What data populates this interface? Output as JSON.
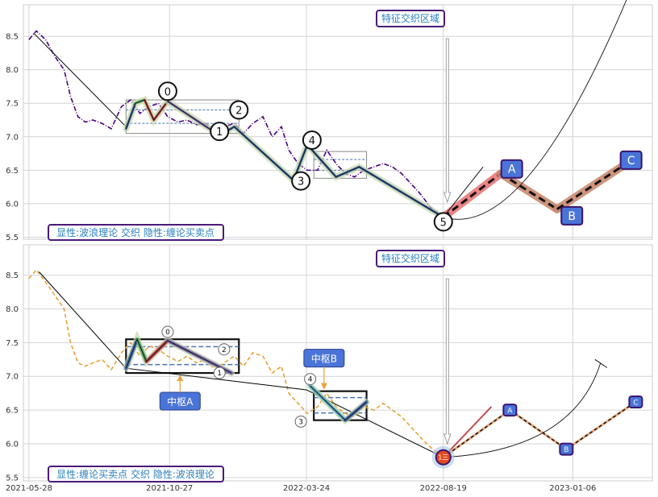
{
  "chart_data": [
    {
      "type": "line",
      "panel": "top",
      "title": "",
      "xlabel": "",
      "ylabel": "",
      "xlim": [
        "2021-05-22",
        "2023-04-02"
      ],
      "ylim": [
        5.47,
        8.97
      ],
      "yticks": [
        5.5,
        6.0,
        6.5,
        7.0,
        7.5,
        8.0,
        8.5
      ],
      "grid": true,
      "series": [
        {
          "name": "",
          "style": "dash-dot",
          "color": "#4b0082",
          "x": [
            "2021-05-28",
            "2021-06-05",
            "2021-06-15",
            "2021-06-25",
            "2021-07-05",
            "2021-07-12",
            "2021-07-20",
            "2021-07-28",
            "2021-08-05",
            "2021-08-15",
            "2021-08-25",
            "2021-09-05",
            "2021-09-15",
            "2021-09-25",
            "2021-10-05",
            "2021-10-15",
            "2021-10-25",
            "2021-11-05",
            "2021-11-15",
            "2021-11-25",
            "2021-12-05",
            "2021-12-15",
            "2021-12-25",
            "2022-01-05",
            "2022-01-15",
            "2022-01-25",
            "2022-02-05",
            "2022-02-15",
            "2022-02-25",
            "2022-03-05",
            "2022-03-15",
            "2022-03-25",
            "2022-04-05",
            "2022-04-15",
            "2022-04-25",
            "2022-05-05",
            "2022-05-15",
            "2022-05-25",
            "2022-06-05",
            "2022-06-15",
            "2022-06-25",
            "2022-07-05",
            "2022-07-15",
            "2022-07-25",
            "2022-08-05",
            "2022-08-19"
          ],
          "y": [
            8.45,
            8.58,
            8.45,
            8.2,
            8.0,
            7.6,
            7.3,
            7.22,
            7.25,
            7.2,
            7.12,
            7.45,
            7.55,
            7.35,
            7.45,
            7.5,
            7.3,
            7.22,
            7.25,
            7.18,
            7.2,
            7.1,
            7.15,
            7.2,
            7.05,
            7.2,
            7.3,
            7.0,
            7.15,
            6.8,
            6.6,
            6.5,
            6.5,
            6.8,
            6.6,
            6.45,
            6.4,
            6.5,
            6.55,
            6.6,
            6.55,
            6.45,
            6.3,
            6.15,
            5.95,
            5.8
          ]
        },
        {
          "name": "",
          "style": "solid",
          "color": "#000000",
          "x": [
            "2021-06-02",
            "2021-09-10"
          ],
          "y": [
            8.55,
            7.15
          ]
        }
      ],
      "wave_segments": [
        {
          "x": [
            "2021-09-10",
            "2021-09-20",
            "2021-09-30",
            "2021-10-10",
            "2021-10-25"
          ],
          "y": [
            7.12,
            7.5,
            7.55,
            7.25,
            7.53
          ],
          "colors": [
            "#4c72b0",
            "#55a868",
            "#c44e52",
            "#c44e52"
          ]
        },
        {
          "x": [
            "2021-10-25",
            "2021-12-20"
          ],
          "y": [
            7.53,
            7.02
          ],
          "color": "#8172b2"
        },
        {
          "x": [
            "2021-12-20",
            "2022-01-05",
            "2022-03-10",
            "2022-03-25",
            "2022-04-25",
            "2022-05-20",
            "2022-08-19"
          ],
          "y": [
            7.02,
            7.15,
            6.35,
            6.88,
            6.4,
            6.55,
            5.8
          ],
          "color": "#4c72b0"
        }
      ],
      "pivot_boxes": [
        {
          "x": [
            "2021-09-10",
            "2022-01-10"
          ],
          "y": [
            7.05,
            7.55
          ]
        },
        {
          "x": [
            "2022-04-01",
            "2022-05-28"
          ],
          "y": [
            6.38,
            6.78
          ]
        }
      ],
      "wave_points": [
        {
          "label": "0",
          "x": "2021-10-25",
          "y": 7.68
        },
        {
          "label": "1",
          "x": "2021-12-20",
          "y": 7.08
        },
        {
          "label": "2",
          "x": "2022-01-10",
          "y": 7.4
        },
        {
          "label": "3",
          "x": "2022-03-18",
          "y": 6.34
        },
        {
          "label": "4",
          "x": "2022-03-30",
          "y": 6.95
        },
        {
          "label": "5",
          "x": "2022-08-19",
          "y": 5.73
        }
      ],
      "forecast": {
        "points": [
          {
            "label": "A",
            "x": "2022-11-01",
            "y": 6.52
          },
          {
            "label": "B",
            "x": "2023-01-05",
            "y": 5.82
          },
          {
            "label": "C",
            "x": "2023-03-10",
            "y": 6.65
          }
        ],
        "path_x": [
          "2022-08-19",
          "2022-10-20",
          "2022-12-20",
          "2023-03-05"
        ],
        "path_y": [
          5.8,
          6.45,
          5.92,
          6.6
        ]
      },
      "region_label": "特征交织区域",
      "panel_label": "显性:波浪理论 交织 隐性:缠论买卖点"
    },
    {
      "type": "line",
      "panel": "bottom",
      "title": "",
      "xlabel": "",
      "ylabel": "",
      "xlim": [
        "2021-05-22",
        "2023-04-02"
      ],
      "ylim": [
        5.45,
        8.95
      ],
      "xticks": [
        "2021-05-28",
        "2021-10-27",
        "2022-03-24",
        "2022-08-19",
        "2023-01-06"
      ],
      "yticks": [
        5.5,
        6.0,
        6.5,
        7.0,
        7.5,
        8.0,
        8.5
      ],
      "grid": true,
      "series": [
        {
          "name": "",
          "style": "dashed",
          "color": "#e8a33b",
          "x": [
            "2021-05-28",
            "2021-06-05",
            "2021-06-15",
            "2021-06-25",
            "2021-07-05",
            "2021-07-12",
            "2021-07-20",
            "2021-07-28",
            "2021-08-05",
            "2021-08-15",
            "2021-08-25",
            "2021-09-05",
            "2021-09-15",
            "2021-09-25",
            "2021-10-05",
            "2021-10-15",
            "2021-10-25",
            "2021-11-05",
            "2021-11-15",
            "2021-11-25",
            "2021-12-05",
            "2021-12-15",
            "2021-12-25",
            "2022-01-05",
            "2022-01-15",
            "2022-01-25",
            "2022-02-05",
            "2022-02-15",
            "2022-02-25",
            "2022-03-05",
            "2022-03-15",
            "2022-03-25",
            "2022-04-05",
            "2022-04-15",
            "2022-04-25",
            "2022-05-05",
            "2022-05-15",
            "2022-05-25",
            "2022-06-05",
            "2022-06-15",
            "2022-06-25",
            "2022-07-05",
            "2022-07-15",
            "2022-07-25",
            "2022-08-05",
            "2022-08-19"
          ],
          "y": [
            8.45,
            8.58,
            8.4,
            8.2,
            8.0,
            7.5,
            7.2,
            7.15,
            7.2,
            7.25,
            7.1,
            7.35,
            7.5,
            7.3,
            7.45,
            7.4,
            7.3,
            7.22,
            7.3,
            7.2,
            7.25,
            7.1,
            7.2,
            7.3,
            7.15,
            7.35,
            7.3,
            7.05,
            7.15,
            6.75,
            6.6,
            6.45,
            6.55,
            6.75,
            6.55,
            6.45,
            6.4,
            6.55,
            6.5,
            6.6,
            6.5,
            6.4,
            6.25,
            6.1,
            5.95,
            5.8
          ]
        },
        {
          "name": "",
          "style": "solid",
          "color": "#000000",
          "x": [
            "2021-06-08",
            "2021-09-10",
            "2022-03-24",
            "2022-08-19"
          ],
          "y": [
            8.55,
            7.12,
            6.8,
            5.8
          ]
        }
      ],
      "wave_segments": [
        {
          "x": [
            "2021-09-10",
            "2021-09-22",
            "2021-10-02",
            "2021-10-25",
            "2022-01-02"
          ],
          "y": [
            7.12,
            7.55,
            7.22,
            7.53,
            7.05
          ],
          "colors": [
            "#4c72b0",
            "#55a868",
            "#c44e52",
            "#8172b2"
          ]
        },
        {
          "x": [
            "2022-03-28",
            "2022-05-05",
            "2022-05-28"
          ],
          "y": [
            6.86,
            6.35,
            6.62
          ],
          "colors": [
            "#64b5cd",
            "#4c72b0"
          ]
        }
      ],
      "pivot_boxes": [
        {
          "label": "中枢A",
          "x": [
            "2021-09-10",
            "2022-01-10"
          ],
          "y": [
            7.05,
            7.55
          ]
        },
        {
          "label": "中枢B",
          "x": [
            "2022-04-01",
            "2022-05-28"
          ],
          "y": [
            6.35,
            6.78
          ]
        }
      ],
      "wave_points": [
        {
          "label": "0",
          "x": "2021-10-25",
          "y": 7.66
        },
        {
          "label": "1",
          "x": "2021-12-20",
          "y": 7.05
        },
        {
          "label": "2",
          "x": "2021-12-25",
          "y": 7.4
        },
        {
          "label": "3",
          "x": "2022-03-18",
          "y": 6.33
        },
        {
          "label": "4",
          "x": "2022-03-28",
          "y": 6.96
        },
        {
          "label": "1三",
          "x": "2022-08-19",
          "y": 5.8
        }
      ],
      "forecast": {
        "points": [
          {
            "label": "A",
            "x": "2022-10-30",
            "y": 6.5
          },
          {
            "label": "B",
            "x": "2022-12-30",
            "y": 5.92
          },
          {
            "label": "C",
            "x": "2023-03-15",
            "y": 6.62
          }
        ],
        "path_x": [
          "2022-08-19",
          "2022-10-30",
          "2022-12-30",
          "2023-03-15"
        ],
        "path_y": [
          5.8,
          6.5,
          5.92,
          6.62
        ]
      },
      "region_label": "特征交织区域",
      "panel_label": "显性:缠论买卖点 交织 隐性:波浪理论"
    }
  ]
}
